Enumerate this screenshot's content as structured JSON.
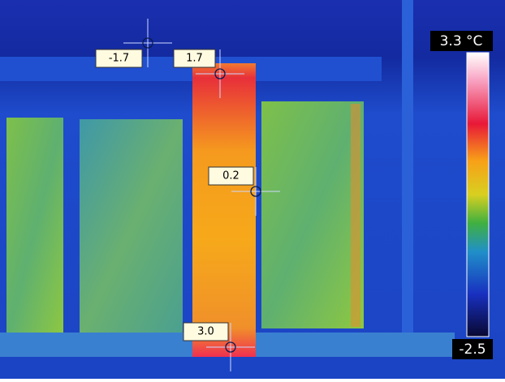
{
  "scale": {
    "max_label": "3.3 °C",
    "min_label": "-2.5"
  },
  "spots": [
    {
      "label": "-1.7"
    },
    {
      "label": "1.7"
    },
    {
      "label": "0.2"
    },
    {
      "label": "3.0"
    }
  ]
}
